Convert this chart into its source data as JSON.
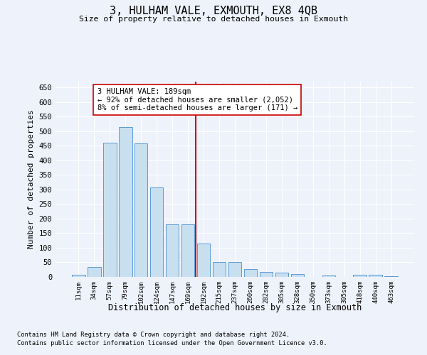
{
  "title": "3, HULHAM VALE, EXMOUTH, EX8 4QB",
  "subtitle": "Size of property relative to detached houses in Exmouth",
  "xlabel": "Distribution of detached houses by size in Exmouth",
  "ylabel": "Number of detached properties",
  "categories": [
    "11sqm",
    "34sqm",
    "57sqm",
    "79sqm",
    "102sqm",
    "124sqm",
    "147sqm",
    "169sqm",
    "192sqm",
    "215sqm",
    "237sqm",
    "260sqm",
    "282sqm",
    "305sqm",
    "328sqm",
    "350sqm",
    "373sqm",
    "395sqm",
    "418sqm",
    "440sqm",
    "463sqm"
  ],
  "values": [
    8,
    35,
    460,
    513,
    457,
    307,
    180,
    180,
    115,
    50,
    50,
    27,
    18,
    14,
    10,
    0,
    5,
    0,
    8,
    7,
    3
  ],
  "bar_color": "#c8dff0",
  "bar_edge_color": "#5b9bd5",
  "vline_color": "#cc0000",
  "annotation_text": "3 HULHAM VALE: 189sqm\n← 92% of detached houses are smaller (2,052)\n8% of semi-detached houses are larger (171) →",
  "annotation_box_color": "#ffffff",
  "annotation_box_edge": "#cc0000",
  "ylim": [
    0,
    670
  ],
  "yticks": [
    0,
    50,
    100,
    150,
    200,
    250,
    300,
    350,
    400,
    450,
    500,
    550,
    600,
    650
  ],
  "bg_color": "#eef2fb",
  "grid_color": "#ffffff",
  "footer1": "Contains HM Land Registry data © Crown copyright and database right 2024.",
  "footer2": "Contains public sector information licensed under the Open Government Licence v3.0."
}
